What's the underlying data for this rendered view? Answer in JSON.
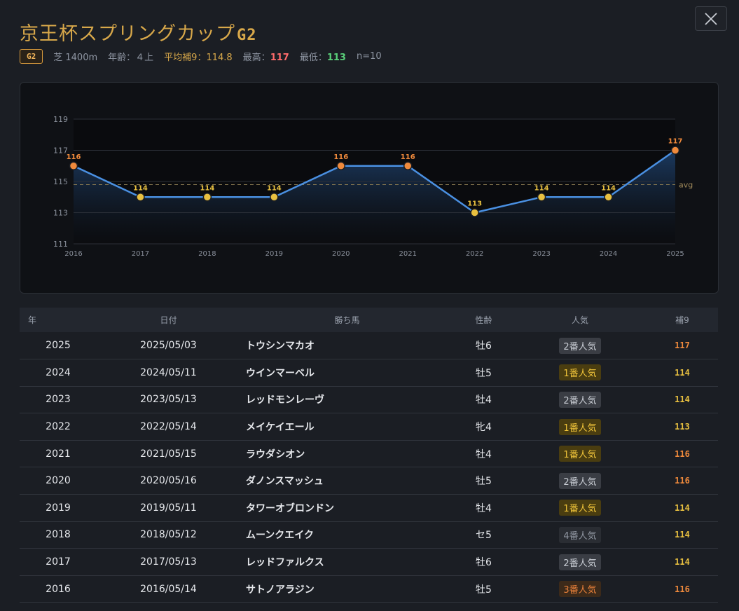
{
  "header": {
    "title": "京王杯スプリングカップ",
    "grade": "G2",
    "badge": "G2",
    "surface_distance": "芝 1400m",
    "age_label": "年齢：",
    "age_value": "４上",
    "avg_label": "平均補9：",
    "avg_value": "114.8",
    "max_label": "最高：",
    "max_value": "117",
    "min_label": "最低：",
    "min_value": "113",
    "count": "n=10"
  },
  "colors": {
    "accent": "#d8a84a",
    "line": "#4a90e2",
    "high": "#f08a3c",
    "mid": "#e8c040",
    "max": "#ff6b6b",
    "min": "#5ad07a"
  },
  "chart_data": {
    "type": "line",
    "x": [
      "2016",
      "2017",
      "2018",
      "2019",
      "2020",
      "2021",
      "2022",
      "2023",
      "2024",
      "2025"
    ],
    "values": [
      116,
      114,
      114,
      114,
      116,
      116,
      113,
      114,
      114,
      117
    ],
    "y_ticks": [
      111,
      113,
      115,
      117,
      119
    ],
    "ylim": [
      111,
      119
    ],
    "average": 114.8,
    "avg_label": "avg",
    "grid": true
  },
  "table": {
    "headers": [
      "年",
      "日付",
      "勝ち馬",
      "性齢",
      "人気",
      "補9"
    ],
    "rows": [
      {
        "year": "2025",
        "date": "2025/05/03",
        "horse": "トウシンマカオ",
        "sex_age": "牡6",
        "pop": "2番人気",
        "pop_rank": 2,
        "score": "117"
      },
      {
        "year": "2024",
        "date": "2024/05/11",
        "horse": "ウインマーベル",
        "sex_age": "牡5",
        "pop": "1番人気",
        "pop_rank": 1,
        "score": "114"
      },
      {
        "year": "2023",
        "date": "2023/05/13",
        "horse": "レッドモンレーヴ",
        "sex_age": "牡4",
        "pop": "2番人気",
        "pop_rank": 2,
        "score": "114"
      },
      {
        "year": "2022",
        "date": "2022/05/14",
        "horse": "メイケイエール",
        "sex_age": "牝4",
        "pop": "1番人気",
        "pop_rank": 1,
        "score": "113"
      },
      {
        "year": "2021",
        "date": "2021/05/15",
        "horse": "ラウダシオン",
        "sex_age": "牡4",
        "pop": "1番人気",
        "pop_rank": 1,
        "score": "116"
      },
      {
        "year": "2020",
        "date": "2020/05/16",
        "horse": "ダノンスマッシュ",
        "sex_age": "牡5",
        "pop": "2番人気",
        "pop_rank": 2,
        "score": "116"
      },
      {
        "year": "2019",
        "date": "2019/05/11",
        "horse": "タワーオブロンドン",
        "sex_age": "牡4",
        "pop": "1番人気",
        "pop_rank": 1,
        "score": "114"
      },
      {
        "year": "2018",
        "date": "2018/05/12",
        "horse": "ムーンクエイク",
        "sex_age": "セ5",
        "pop": "4番人気",
        "pop_rank": 4,
        "score": "114"
      },
      {
        "year": "2017",
        "date": "2017/05/13",
        "horse": "レッドファルクス",
        "sex_age": "牡6",
        "pop": "2番人気",
        "pop_rank": 2,
        "score": "114"
      },
      {
        "year": "2016",
        "date": "2016/05/14",
        "horse": "サトノアラジン",
        "sex_age": "牡5",
        "pop": "3番人気",
        "pop_rank": 3,
        "score": "116"
      }
    ]
  }
}
